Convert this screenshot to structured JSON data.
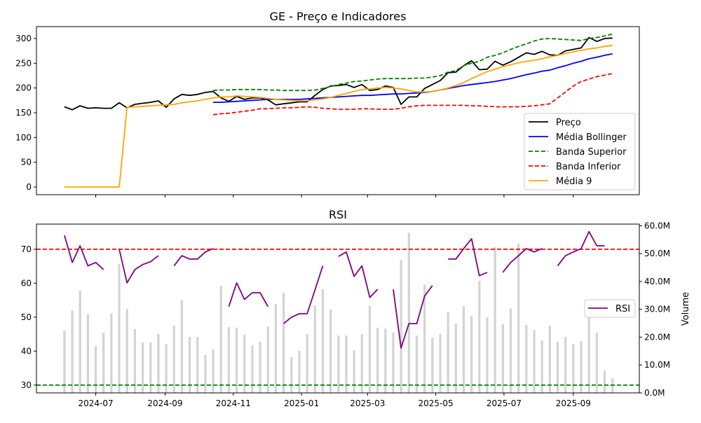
{
  "chart_data": [
    {
      "type": "line",
      "title": "GE - Preço e Indicadores",
      "x_start": "2024-06-03",
      "x_step_days": 7,
      "xlim": [
        "2024-05-09",
        "2025-10-30"
      ],
      "ylim": [
        -15.6,
        324
      ],
      "yticks": [
        0,
        50,
        100,
        150,
        200,
        250,
        300
      ],
      "xticks": [
        "2024-07",
        "2024-09",
        "2024-11",
        "2025-01",
        "2025-03",
        "2025-05",
        "2025-07",
        "2025-09"
      ],
      "legend_position": "lower-right",
      "series": [
        {
          "name": "Preço",
          "color": "#000000",
          "dash": false,
          "values": [
            162,
            156,
            164,
            159,
            160,
            159,
            159,
            170,
            160,
            167,
            169,
            171,
            174,
            161,
            178,
            187,
            185,
            187,
            191,
            193,
            180,
            173,
            183,
            177,
            180,
            180,
            176,
            166,
            168,
            170,
            172,
            172,
            185,
            197,
            204,
            205,
            207,
            201,
            207,
            195,
            197,
            204,
            201,
            167,
            182,
            182,
            199,
            207,
            215,
            231,
            232,
            245,
            255,
            237,
            238,
            254,
            246,
            253,
            262,
            271,
            268,
            274,
            267,
            266,
            275,
            278,
            281,
            302,
            294,
            300,
            301
          ]
        },
        {
          "name": "Média Bollinger",
          "color": "#0000ff",
          "dash": false,
          "values": [
            null,
            null,
            null,
            null,
            null,
            null,
            null,
            null,
            null,
            null,
            null,
            null,
            null,
            null,
            null,
            null,
            null,
            null,
            null,
            171,
            171,
            172,
            173,
            174,
            175,
            176,
            177,
            177,
            177,
            177,
            177,
            178,
            179,
            180,
            181,
            182,
            183,
            184,
            185,
            185,
            186,
            187,
            188,
            188,
            189,
            190,
            191,
            193,
            196,
            199,
            202,
            205,
            207,
            209,
            211,
            213,
            216,
            219,
            223,
            227,
            230,
            234,
            236,
            241,
            245,
            250,
            254,
            259,
            262,
            266,
            269
          ]
        },
        {
          "name": "Banda Superior",
          "color": "#008000",
          "dash": true,
          "values": [
            null,
            null,
            null,
            null,
            null,
            null,
            null,
            null,
            null,
            null,
            null,
            null,
            null,
            null,
            null,
            null,
            null,
            null,
            null,
            195,
            196,
            196,
            197,
            197,
            197,
            197,
            196,
            196,
            195,
            195,
            195,
            195,
            196,
            199,
            203,
            207,
            210,
            213,
            214,
            216,
            218,
            219,
            219,
            219,
            219,
            220,
            220,
            222,
            225,
            232,
            235,
            245,
            250,
            254,
            262,
            266,
            271,
            278,
            284,
            289,
            295,
            299,
            300,
            299,
            298,
            297,
            296,
            300,
            302,
            305,
            309
          ]
        },
        {
          "name": "Banda Inferior",
          "color": "#ff0000",
          "dash": true,
          "values": [
            null,
            null,
            null,
            null,
            null,
            null,
            null,
            null,
            null,
            null,
            null,
            null,
            null,
            null,
            null,
            null,
            null,
            null,
            null,
            146,
            148,
            149,
            151,
            153,
            155,
            158,
            158,
            159,
            160,
            160,
            161,
            162,
            161,
            159,
            158,
            157,
            157,
            157,
            158,
            158,
            157,
            157,
            157,
            159,
            162,
            164,
            165,
            165,
            165,
            165,
            165,
            165,
            164,
            164,
            163,
            162,
            162,
            162,
            162,
            163,
            164,
            166,
            168,
            180,
            192,
            204,
            213,
            218,
            223,
            226,
            229
          ]
        },
        {
          "name": "Média 9",
          "color": "#ffa500",
          "dash": false,
          "values": [
            0,
            0,
            0,
            0,
            0,
            0,
            0,
            0,
            161,
            162,
            163,
            164,
            165,
            166,
            167,
            170,
            172,
            174,
            177,
            180,
            182,
            182,
            184,
            183,
            182,
            181,
            179,
            177,
            176,
            175,
            174,
            174,
            176,
            178,
            181,
            185,
            189,
            193,
            197,
            198,
            200,
            201,
            200,
            198,
            195,
            192,
            192,
            193,
            196,
            200,
            205,
            211,
            219,
            226,
            233,
            238,
            243,
            247,
            251,
            254,
            256,
            259,
            263,
            266,
            270,
            273,
            276,
            279,
            281,
            284,
            286
          ]
        }
      ]
    },
    {
      "type": "line+bar",
      "title": "RSI",
      "x_start": "2024-06-03",
      "x_step_days": 7,
      "xlim": [
        "2024-05-09",
        "2025-10-30"
      ],
      "ylim": [
        27.7,
        77.4
      ],
      "yticks": [
        30,
        40,
        50,
        60,
        70
      ],
      "y2label": "Volume",
      "y2lim": [
        0,
        60.6
      ],
      "y2ticks": [
        "0.0M",
        "10.0M",
        "20.0M",
        "30.0M",
        "40.0M",
        "50.0M",
        "60.0M"
      ],
      "y2tick_values": [
        0,
        10,
        20,
        30,
        40,
        50,
        60
      ],
      "xticks": [
        "2024-07",
        "2024-09",
        "2024-11",
        "2025-01",
        "2025-03",
        "2025-05",
        "2025-07",
        "2025-09"
      ],
      "legend_position": "center-right",
      "thresholds": [
        {
          "value": 70,
          "color": "#ff0000"
        },
        {
          "value": 30,
          "color": "#008000"
        }
      ],
      "rsi": {
        "name": "RSI",
        "color": "#800080",
        "values": [
          74.1,
          66.1,
          71.0,
          65.1,
          66.1,
          64.0,
          null,
          70.0,
          60.1,
          64.0,
          65.5,
          66.3,
          68.1,
          null,
          65.1,
          68.1,
          67.1,
          67.1,
          69.2,
          70.2,
          null,
          53.1,
          60.1,
          55.2,
          57.2,
          57.2,
          53.1,
          null,
          48.1,
          50.0,
          51.0,
          51.0,
          58.0,
          65.1,
          null,
          67.9,
          69.2,
          62.0,
          65.1,
          55.8,
          58.2,
          null,
          58.2,
          40.9,
          48.1,
          48.1,
          56.2,
          59.3,
          null,
          67.1,
          67.1,
          70.2,
          73.1,
          62.2,
          63.2,
          null,
          63.2,
          66.1,
          68.1,
          70.2,
          69.2,
          70.2,
          null,
          65.1,
          68.1,
          69.2,
          70.2,
          75.2,
          71.0,
          71.0,
          null
        ]
      },
      "volume": {
        "name": "Volume",
        "unit": "M",
        "color": "#d3d3d3",
        "values": [
          22.4,
          29.6,
          36.7,
          28.4,
          16.8,
          21.6,
          28.6,
          46.2,
          30.2,
          22.9,
          18.1,
          18.1,
          21.1,
          17.6,
          24.1,
          33.4,
          20.1,
          20.1,
          13.6,
          15.6,
          38.4,
          23.6,
          23.4,
          20.9,
          17.1,
          18.3,
          23.9,
          31.9,
          35.9,
          12.8,
          15.1,
          21.1,
          31.4,
          37.2,
          29.9,
          20.6,
          20.6,
          15.3,
          21.1,
          31.2,
          23.4,
          23.1,
          21.6,
          47.7,
          57.5,
          20.6,
          38.9,
          19.8,
          21.1,
          29.1,
          24.9,
          31.2,
          27.6,
          40.2,
          27.1,
          52.3,
          24.6,
          30.2,
          53.5,
          24.4,
          22.6,
          18.8,
          24.1,
          18.3,
          20.1,
          17.6,
          18.6,
          27.1,
          21.6,
          8.0,
          5.3
        ]
      }
    }
  ]
}
